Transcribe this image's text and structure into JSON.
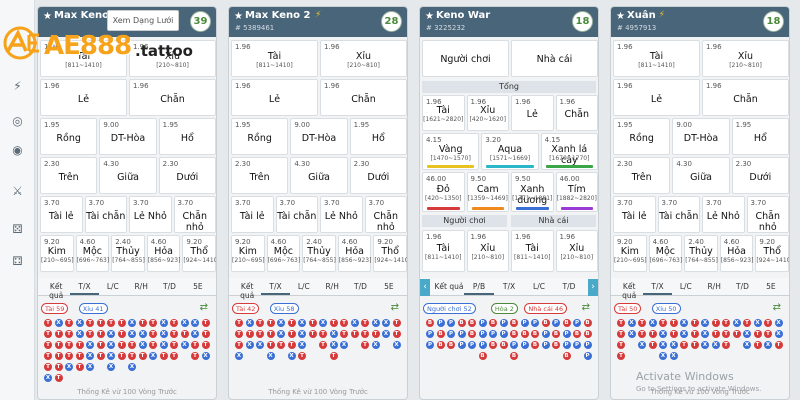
{
  "site": {
    "logo_main": "AE888",
    "logo_suffix": ".tattoo",
    "tooltip": "Xem Dạng Lưới"
  },
  "sidebar": {
    "icons": [
      "bolt-icon",
      "coin-icon",
      "coin-icon-2",
      "crossed-swords-icon",
      "dice-icon",
      "dice-icon-2"
    ]
  },
  "watermark": {
    "line1": "Activate Windows",
    "line2": "Go to Settings to activate Windows."
  },
  "panels": [
    {
      "title": "Max Keno",
      "bolt": false,
      "id": "",
      "count": "39",
      "tabs": [
        "Kết quả",
        "T/X",
        "L/C",
        "R/H",
        "T/D",
        "5E"
      ],
      "active_tab": 1,
      "chips": [
        {
          "label": "Tài 59",
          "color": "#d63a3a"
        },
        {
          "label": "Xỉu 41",
          "color": "#3a6fd6"
        }
      ],
      "footer": "Thống Kê vừ 100 Vòng Trước"
    },
    {
      "title": "Max Keno 2",
      "bolt": true,
      "id": "# 5389461",
      "count": "28",
      "tabs": [
        "Kết quả",
        "T/X",
        "L/C",
        "R/H",
        "T/D",
        "5E"
      ],
      "active_tab": 1,
      "chips": [
        {
          "label": "Tài 42",
          "color": "#d63a3a"
        },
        {
          "label": "Xỉu 58",
          "color": "#3a6fd6"
        }
      ],
      "footer": "Thống Kê vừ 100 Vòng Trước"
    },
    {
      "title": "Keno War",
      "bolt": false,
      "id": "# 3225232",
      "count": "18",
      "tabs": [
        "Kết quả",
        "P/B",
        "T/X",
        "L/C",
        "T/D"
      ],
      "active_tab": 1,
      "chips": [
        {
          "label": "Người chơi 52",
          "color": "#3a6fd6"
        },
        {
          "label": "Hòa 2",
          "color": "#4a8a3a"
        },
        {
          "label": "Nhà cái 46",
          "color": "#d63a3a"
        }
      ],
      "footer": ""
    },
    {
      "title": "Xuân",
      "bolt": true,
      "id": "# 4957913",
      "count": "18",
      "tabs": [
        "Kết quả",
        "T/X",
        "L/C",
        "R/H",
        "T/D",
        "5E"
      ],
      "active_tab": 1,
      "chips": [
        {
          "label": "Tài 50",
          "color": "#d63a3a"
        },
        {
          "label": "Xỉu 50",
          "color": "#3a6fd6"
        }
      ],
      "footer": "Thống Kê vừ 100 Vòng Trước"
    }
  ],
  "std_bets": [
    {
      "odds": "1.96",
      "name": "Tài",
      "range": "[811~1410]"
    },
    {
      "odds": "1.96",
      "name": "Xỉu",
      "range": "[210~810]"
    },
    {
      "odds": "1.96",
      "name": "Lẻ",
      "range": ""
    },
    {
      "odds": "1.96",
      "name": "Chẵn",
      "range": ""
    },
    {
      "odds": "1.95",
      "name": "Rồng",
      "range": ""
    },
    {
      "odds": "9.00",
      "name": "DT-Hòa",
      "range": ""
    },
    {
      "odds": "1.95",
      "name": "Hổ",
      "range": ""
    },
    {
      "odds": "2.30",
      "name": "Trên",
      "range": ""
    },
    {
      "odds": "4.30",
      "name": "Giữa",
      "range": ""
    },
    {
      "odds": "2.30",
      "name": "Dưới",
      "range": ""
    },
    {
      "odds": "3.70",
      "name": "Tài lẻ",
      "range": ""
    },
    {
      "odds": "3.70",
      "name": "Tài chẵn",
      "range": ""
    },
    {
      "odds": "3.70",
      "name": "Lẻ Nhỏ",
      "range": ""
    },
    {
      "odds": "3.70",
      "name": "Chẵn nhỏ",
      "range": ""
    },
    {
      "odds": "9.20",
      "name": "Kim",
      "range": "[210~695]"
    },
    {
      "odds": "4.60",
      "name": "Mộc",
      "range": "[696~763]"
    },
    {
      "odds": "2.40",
      "name": "Thủy",
      "range": "[764~855]"
    },
    {
      "odds": "4.60",
      "name": "Hỏa",
      "range": "[856~923]"
    },
    {
      "odds": "9.20",
      "name": "Thổ",
      "range": "[924~1410]"
    }
  ],
  "war": {
    "top": [
      {
        "name": "Người chơi"
      },
      {
        "name": "Nhà cái"
      }
    ],
    "tong": "Tổng",
    "row1": [
      {
        "odds": "1.96",
        "name": "Tài",
        "range": "[1621~2820]"
      },
      {
        "odds": "1.96",
        "name": "Xỉu",
        "range": "[420~1620]"
      },
      {
        "odds": "1.96",
        "name": "Lẻ",
        "range": ""
      },
      {
        "odds": "1.96",
        "name": "Chẵn",
        "range": ""
      }
    ],
    "row2": [
      {
        "odds": "4.15",
        "name": "Vàng",
        "range": "[1470~1570]",
        "color": "#e8c21e"
      },
      {
        "odds": "3.20",
        "name": "Aqua",
        "range": "[1571~1669]",
        "color": "#2ab7c9"
      },
      {
        "odds": "4.15",
        "name": "Xanh lá cây",
        "range": "[1670~1770]",
        "color": "#3aa648"
      }
    ],
    "row3": [
      {
        "odds": "46.00",
        "name": "Đỏ",
        "range": "[420~1350]",
        "color": "#d63a3a"
      },
      {
        "odds": "9.50",
        "name": "Cam",
        "range": "[1359~1469]",
        "color": "#f08a1e"
      },
      {
        "odds": "9.50",
        "name": "Xanh dương",
        "range": "[1771~1881]",
        "color": "#3a6fd6"
      },
      {
        "odds": "46.00",
        "name": "Tím",
        "range": "[1882~2820]",
        "color": "#9a3ad6"
      }
    ],
    "side_labels": [
      "Người chơi",
      "Nhà cái"
    ],
    "row4": [
      {
        "odds": "1.96",
        "name": "Tài",
        "range": "[811~1410]"
      },
      {
        "odds": "1.96",
        "name": "Xỉu",
        "range": "[210~810]"
      },
      {
        "odds": "1.96",
        "name": "Tài",
        "range": "[811~1410]"
      },
      {
        "odds": "1.96",
        "name": "Xỉu",
        "range": "[210~810]"
      }
    ]
  },
  "bead_roads": [
    [
      "TTTTTX",
      "XTTTTT",
      "TTTTX",
      "XXTTT",
      "TTXXX",
      "TTTT",
      "TXXXX",
      "TTTT",
      "XXTTX",
      "TXXT",
      "TTTX",
      "XXXT",
      "TTTT",
      "XTX",
      "XXTT",
      "TTTX"
    ],
    [
      "TTTX",
      "XTX",
      "TTX",
      "TTTX",
      "XXT",
      "TTTX",
      "XXXT",
      "TT",
      "XTT",
      "TXXT",
      "TTX",
      "XT",
      "TTT",
      "XTX",
      "XX",
      "TTX"
    ],
    [
      "BPP",
      "PBB",
      "PPB",
      "BPP",
      "BBP",
      "PPPB",
      "BPB",
      "PPB",
      "BBPB",
      "PBP",
      "PBB",
      "BPP",
      "PBB",
      "BPPB",
      "PBP",
      "BBPP"
    ],
    [
      "TTTT",
      "XX",
      "TTX",
      "XTT",
      "TXXX",
      "TTXX",
      "XXT",
      "TTT",
      "XXX",
      "TTX",
      "TTT",
      "XT",
      "TXX",
      "XTT",
      "TTX",
      "XXT"
    ]
  ]
}
